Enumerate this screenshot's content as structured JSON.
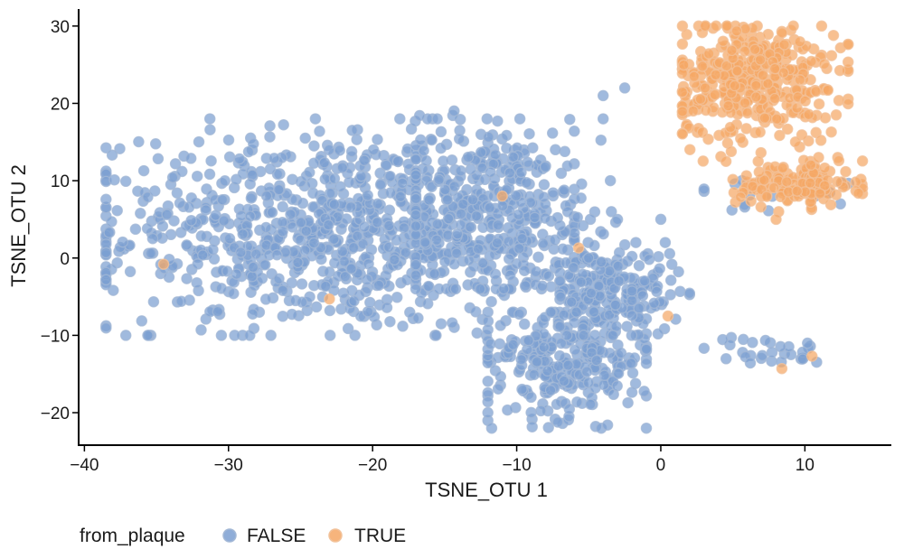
{
  "chart_data": {
    "type": "scatter",
    "xlabel": "TSNE_OTU 1",
    "ylabel": "TSNE_OTU 2",
    "xlim": [
      -40.4,
      16
    ],
    "ylim": [
      -24.2,
      32.2
    ],
    "xticks": [
      -40,
      -30,
      -20,
      -10,
      0,
      10
    ],
    "yticks": [
      -20,
      -10,
      0,
      10,
      20,
      30
    ],
    "xtick_labels": [
      "−40",
      "−30",
      "−20",
      "−10",
      "0",
      "10"
    ],
    "ytick_labels": [
      "−20",
      "−10",
      "0",
      "10",
      "20",
      "30"
    ],
    "grid": false,
    "legend": {
      "title": "from_plaque",
      "position": "bottom-left",
      "entries": [
        "FALSE",
        "TRUE"
      ]
    },
    "series": [
      {
        "name": "FALSE",
        "color": "#7b9fd1",
        "clusters": [
          {
            "center": [
              -23,
              3.5
            ],
            "spread": [
              8,
              6.5
            ],
            "n": 900,
            "xr": [
              -38.5,
              -6
            ],
            "yr": [
              -10,
              18
            ]
          },
          {
            "center": [
              -12,
              6
            ],
            "spread": [
              4,
              6
            ],
            "n": 330,
            "xr": [
              -17,
              -3
            ],
            "yr": [
              -4,
              20
            ]
          },
          {
            "center": [
              -6.5,
              -13
            ],
            "spread": [
              3,
              3.8
            ],
            "n": 300,
            "xr": [
              -12,
              -1
            ],
            "yr": [
              -22,
              -7
            ]
          },
          {
            "center": [
              -3,
              -4.5
            ],
            "spread": [
              2.2,
              2.8
            ],
            "n": 150,
            "xr": [
              -7,
              2
            ],
            "yr": [
              -10,
              2
            ]
          },
          {
            "center": [
              -4.5,
              -2
            ],
            "spread": [
              1.7,
              4
            ],
            "n": 70,
            "xr": [
              -7,
              -2
            ],
            "yr": [
              -10,
              6
            ]
          },
          {
            "center": [
              7,
              -12
            ],
            "spread": [
              2.2,
              1
            ],
            "n": 30,
            "xr": [
              3,
              13
            ],
            "yr": [
              -14.5,
              -9
            ]
          },
          {
            "center": [
              5.5,
              7.5
            ],
            "spread": [
              1.4,
              1.2
            ],
            "n": 10,
            "xr": [
              3,
              8
            ],
            "yr": [
              5,
              10
            ]
          },
          {
            "center": [
              12,
              8.5
            ],
            "spread": [
              0.9,
              1
            ],
            "n": 6,
            "xr": [
              10,
              14
            ],
            "yr": [
              7,
              10
            ]
          }
        ],
        "points": [
          [
            -4,
            21
          ],
          [
            -2.5,
            22
          ],
          [
            -4,
            18
          ],
          [
            -3.5,
            10
          ],
          [
            -9,
            -18
          ],
          [
            0,
            5
          ]
        ]
      },
      {
        "name": "TRUE",
        "color": "#f5a765",
        "clusters": [
          {
            "center": [
              6.5,
              23
            ],
            "spread": [
              3,
              4
            ],
            "n": 420,
            "xr": [
              1.5,
              13
            ],
            "yr": [
              12.5,
              30
            ]
          },
          {
            "center": [
              9.5,
              9.5
            ],
            "spread": [
              2.1,
              1.4
            ],
            "n": 140,
            "xr": [
              5,
              14
            ],
            "yr": [
              6,
              13
            ]
          }
        ],
        "points": [
          [
            -34.5,
            -0.8
          ],
          [
            -23,
            -5.3
          ],
          [
            -11,
            8
          ],
          [
            -5.7,
            1.3
          ],
          [
            0.5,
            -7.5
          ],
          [
            8.4,
            -14.3
          ],
          [
            10.5,
            -12.7
          ],
          [
            8,
            5
          ]
        ]
      }
    ]
  }
}
